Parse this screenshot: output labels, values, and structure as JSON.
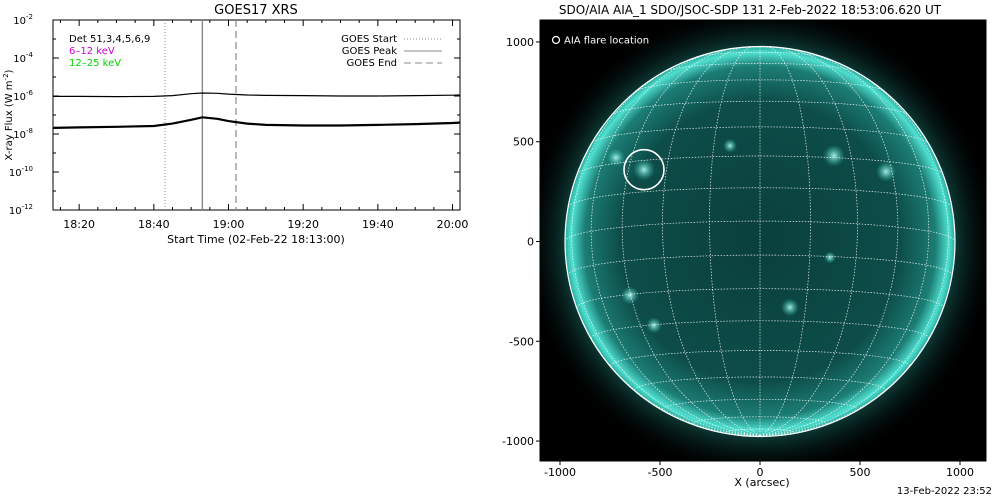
{
  "chart_data": [
    {
      "type": "line",
      "title": "GOES17 XRS",
      "xlabel": "Start Time (02-Feb-22 18:13:00)",
      "ylabel": "X-ray Flux (W m^-2)",
      "ylabel_parts": {
        "base": "X-ray Flux (W m",
        "sup": "-2",
        "end": ")"
      },
      "yscale": "log",
      "ylim_exp": [
        -12,
        -2
      ],
      "yticks": [
        {
          "exp": -2,
          "label": "10",
          "sup": "-2"
        },
        {
          "exp": -4,
          "label": "10",
          "sup": "-4"
        },
        {
          "exp": -6,
          "label": "10",
          "sup": "-6"
        },
        {
          "exp": -8,
          "label": "10",
          "sup": "-8"
        },
        {
          "exp": -10,
          "label": "10",
          "sup": "-10"
        },
        {
          "exp": -12,
          "label": "10",
          "sup": "-12"
        }
      ],
      "xlim": [
        "18:13",
        "20:02"
      ],
      "xticks": [
        "18:20",
        "18:40",
        "19:00",
        "19:20",
        "19:40",
        "20:00"
      ],
      "legend_left": [
        {
          "label": "Det 51,3,4,5,6,9",
          "color": "#000000"
        },
        {
          "label": "6–12 keV",
          "color": "#d400d4"
        },
        {
          "label": "12–25 keV",
          "color": "#00d400"
        }
      ],
      "legend_right": [
        {
          "label": "GOES Start",
          "style": "dotted"
        },
        {
          "label": "GOES Peak",
          "style": "solid"
        },
        {
          "label": "GOES End",
          "style": "dashed"
        }
      ],
      "event_lines": {
        "start": "18:43",
        "peak": "18:53",
        "end": "19:02"
      },
      "series": [
        {
          "x": [
            "18:13",
            "18:20",
            "18:30",
            "18:40",
            "18:45",
            "18:50",
            "18:53",
            "18:57",
            "19:00",
            "19:05",
            "19:10",
            "19:20",
            "19:30",
            "19:40",
            "19:50",
            "20:00",
            "20:02"
          ],
          "log_y": [
            -6.02,
            -6.02,
            -6.03,
            -6.02,
            -5.98,
            -5.88,
            -5.84,
            -5.86,
            -5.9,
            -5.95,
            -5.97,
            -5.98,
            -6.0,
            -6.0,
            -5.98,
            -5.96,
            -5.95
          ],
          "color": "#000000"
        },
        {
          "x": [
            "18:13",
            "18:20",
            "18:30",
            "18:40",
            "18:45",
            "18:50",
            "18:53",
            "18:57",
            "19:00",
            "19:05",
            "19:10",
            "19:20",
            "19:30",
            "19:40",
            "19:50",
            "20:00",
            "20:02"
          ],
          "log_y": [
            -7.68,
            -7.65,
            -7.62,
            -7.58,
            -7.45,
            -7.25,
            -7.12,
            -7.2,
            -7.32,
            -7.45,
            -7.52,
            -7.55,
            -7.55,
            -7.52,
            -7.48,
            -7.42,
            -7.4
          ],
          "color": "#000000"
        }
      ]
    },
    {
      "type": "image",
      "title": "SDO/AIA AIA_1 SDO/JSOC-SDP 131  2-Feb-2022 18:53:06.620 UT",
      "xlabel": "X (arcsec)",
      "ylabel": "",
      "xlim": [
        -1100,
        1130
      ],
      "ylim": [
        -1100,
        1110
      ],
      "xticks": [
        -1000,
        -500,
        0,
        500,
        1000
      ],
      "yticks": [
        -1000,
        -500,
        0,
        500,
        1000
      ],
      "legend": "AIA flare location",
      "flare_location": [
        -580,
        360
      ],
      "solar_radius_arcsec": 975
    }
  ],
  "footer": {
    "timestamp": "13-Feb-2022 23:52"
  },
  "colors": {
    "disk": "#0c4b47",
    "limb": "#3fd8c8",
    "background": "#000000"
  }
}
